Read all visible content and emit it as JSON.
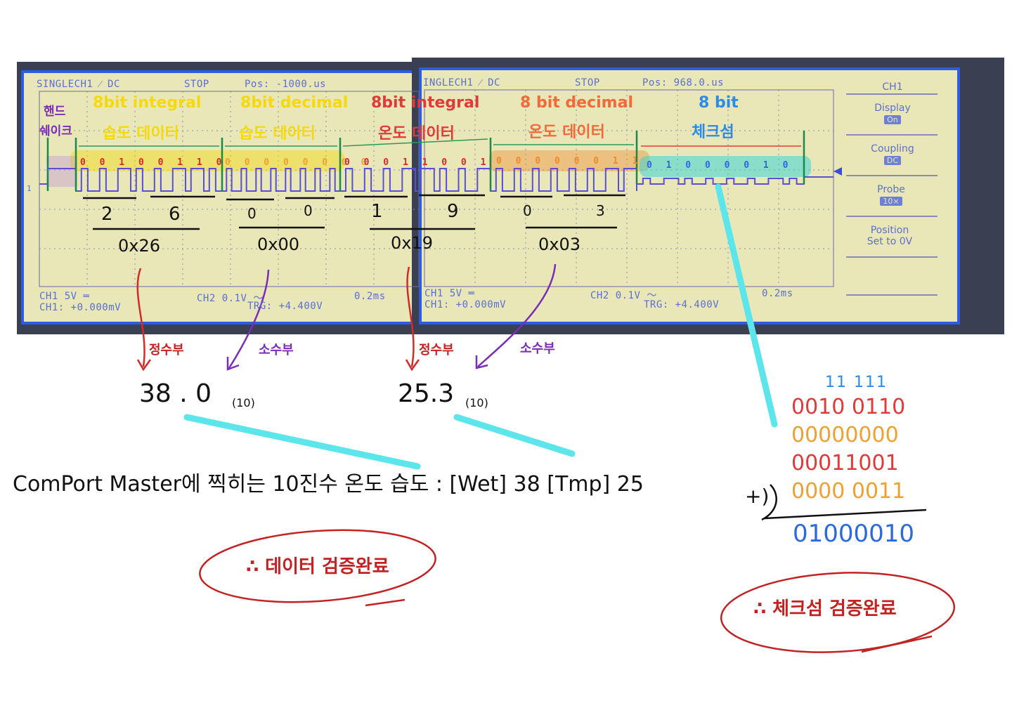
{
  "scope": {
    "left": {
      "top_status": "SINGLECH1 ⁄ DC",
      "stop": "STOP",
      "pos": "Pos: -1000.us",
      "ch1_scale": "CH1  5V ═",
      "ch1_offset": "CH1: +0.000mV",
      "ch2_scale": "CH2  0.1V ～",
      "trigger": "TRG: +4.400V",
      "timebase": "0.2ms"
    },
    "right": {
      "top_status": "INGLECH1 ⁄ DC",
      "stop": "STOP",
      "pos": "Pos: 968.0.us",
      "ch1_scale": "CH1  5V ═",
      "ch1_offset": "CH1: +0.000mV",
      "ch2_scale": "CH2  0.1V ～",
      "trigger": "TRG: +4.400V",
      "timebase": "0.2ms"
    },
    "marker": "1",
    "menu": {
      "title": "CH1",
      "items": [
        {
          "label": "Display",
          "value": "On"
        },
        {
          "label": "Coupling",
          "value": "DC"
        },
        {
          "label": "Probe",
          "value": "10×"
        },
        {
          "label": "Position",
          "sub": "Set to 0V"
        }
      ]
    }
  },
  "annotations": {
    "handshake": [
      "핸드",
      "쉐이크"
    ],
    "segments": [
      {
        "line1": "8bit integral",
        "line2": "습도 데이터",
        "bits": "0 0 1 0 0 1 1 0",
        "hex_digits": [
          "2",
          "6"
        ],
        "hex": "0x26",
        "color": "#f4d90e"
      },
      {
        "line1": "8bit decimal",
        "line2": "습도 데이터",
        "bits": "0 0 0 0 0 0 0 0",
        "hex_digits": [
          "0",
          "0"
        ],
        "hex": "0x00",
        "color": "#f4d90e"
      },
      {
        "line1": "8bit integral",
        "line2": "온도 데이터",
        "bits": "0 0 0 1 1 0 0 1",
        "hex_digits": [
          "1",
          "9"
        ],
        "hex": "0x19",
        "color": "#e03a3a"
      },
      {
        "line1": "8 bit decimal",
        "line2": "온도 데이터",
        "bits": "0 0 0 0 0 0 1 1",
        "hex_digits": [
          "0",
          "3"
        ],
        "hex": "0x03",
        "color": "#f08a2a"
      },
      {
        "line1": "8 bit",
        "line2": "체크섬",
        "bits": "0 1 0 0 0 0 1 0",
        "color": "#2a8be8"
      }
    ],
    "part_labels": {
      "integer": "정수부",
      "decimal": "소수부"
    },
    "humidity_value": "38 . 0",
    "temperature_value": "25.3",
    "base": "(10)",
    "comport_text": "ComPort Master에 찍히는 10진수 온도 습도 : [Wet] 38  [Tmp] 25",
    "data_verified": "∴ 데이터 검증완료",
    "checksum_verified": "∴ 체크섬 검증완료",
    "addition": {
      "carries": "11 111",
      "rows": [
        {
          "bits": "0010 0110",
          "color": "#e03a3a"
        },
        {
          "bits": "00000000",
          "color": "#f0a030"
        },
        {
          "bits": "00011001",
          "color": "#e03a3a"
        },
        {
          "bits": "0000 0011",
          "color": "#f0a030"
        }
      ],
      "plus": "+)",
      "result": "01000010"
    }
  }
}
